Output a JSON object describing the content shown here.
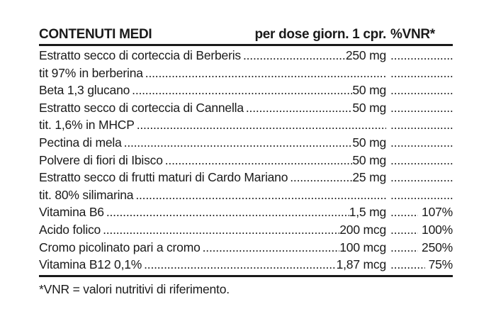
{
  "colors": {
    "text": "#1a1a1a",
    "background": "#ffffff",
    "rule": "#1a1a1a"
  },
  "table": {
    "header": {
      "col_label": "CONTENUTI MEDI",
      "col_dose": "per dose giorn. 1 cpr.",
      "col_vnr": "%VNR*"
    },
    "rows": [
      {
        "label": "Estratto secco di corteccia di Berberis",
        "amount": "250 mg",
        "vnr": ""
      },
      {
        "label": "tit 97% in berberina",
        "amount": "",
        "vnr": ""
      },
      {
        "label": "Beta 1,3 glucano",
        "amount": "50 mg",
        "vnr": ""
      },
      {
        "label": "Estratto secco di corteccia di Cannella",
        "amount": "50 mg",
        "vnr": ""
      },
      {
        "label": "tit. 1,6% in MHCP",
        "amount": "",
        "vnr": ""
      },
      {
        "label": "Pectina di mela",
        "amount": "50 mg",
        "vnr": ""
      },
      {
        "label": "Polvere di fiori di Ibisco",
        "amount": "50 mg",
        "vnr": ""
      },
      {
        "label": "Estratto secco di frutti maturi di Cardo Mariano",
        "amount": "25 mg",
        "vnr": ""
      },
      {
        "label": "tit. 80% silimarina",
        "amount": "",
        "vnr": ""
      },
      {
        "label": "Vitamina B6",
        "amount": "1,5 mg",
        "vnr": "107%"
      },
      {
        "label": "Acido folico",
        "amount": "200 mcg",
        "vnr": "100%"
      },
      {
        "label": "Cromo picolinato pari a cromo",
        "amount": "100 mcg",
        "vnr": "250%"
      },
      {
        "label": "Vitamina B12 0,1%",
        "amount": "1,87 mcg",
        "vnr": "75%"
      }
    ],
    "footnote": "*VNR = valori nutritivi di riferimento."
  }
}
